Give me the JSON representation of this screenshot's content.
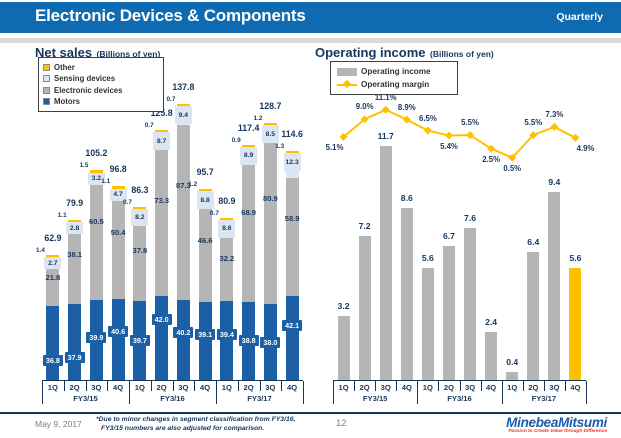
{
  "header": {
    "title": "Electronic Devices & Components",
    "tag": "Quarterly"
  },
  "left_chart": {
    "title": "Net sales",
    "unit": "(Billions of yen)"
  },
  "right_chart": {
    "title": "Operating income",
    "unit": "(Billions of yen)"
  },
  "footer": {
    "date": "May 9, 2017",
    "footnote_line1": "*Due to minor changes in segment classification from FY3/16,",
    "footnote_line2": "FY3/15 numbers are also adjusted for comparison.",
    "page": "12",
    "logo": "MinebeaMitsumi",
    "tagline": "Passion to Create Value through Difference"
  },
  "colors": {
    "header_blue": "#0e6bb2",
    "navy_text": "#17365d",
    "motors_blue": "#1b5fa6",
    "bar_gray": "#b5b5b5",
    "sensing_pale_blue": "#dce6f2",
    "accent_yellow": "#ffc000",
    "logo_blue": "#1b5eac",
    "logo_red": "#e8380d"
  },
  "chart_data": [
    {
      "type": "bar",
      "subtype": "stacked",
      "title": "Net sales (Billions of yen)",
      "categories": [
        "1Q",
        "2Q",
        "3Q",
        "4Q",
        "1Q",
        "2Q",
        "3Q",
        "4Q",
        "1Q",
        "2Q",
        "3Q",
        "4Q"
      ],
      "group_labels": [
        "FY3/15",
        "FY3/16",
        "FY3/17"
      ],
      "ylim": [
        0,
        140
      ],
      "grid": false,
      "legend_position": "top-left",
      "series": [
        {
          "name": "Motors",
          "color": "#1b5fa6",
          "values": [
            36.8,
            37.9,
            39.9,
            40.6,
            39.7,
            42.0,
            40.2,
            39.1,
            39.4,
            38.8,
            38.0,
            42.1
          ]
        },
        {
          "name": "Electronic devices",
          "color": "#b5b5b5",
          "values": [
            21.8,
            38.1,
            60.5,
            50.4,
            37.8,
            73.3,
            87.3,
            46.6,
            32.2,
            68.9,
            80.9,
            58.9
          ]
        },
        {
          "name": "Sensing devices",
          "color": "#dce6f2",
          "values": [
            2.7,
            2.8,
            3.2,
            4.7,
            8.2,
            8.7,
            9.4,
            8.8,
            8.6,
            8.9,
            8.5,
            12.3
          ]
        },
        {
          "name": "Other",
          "color": "#ffc000",
          "values": [
            1.4,
            1.1,
            1.5,
            1.1,
            0.7,
            0.7,
            0.7,
            1.2,
            0.7,
            0.9,
            1.2,
            1.3
          ]
        }
      ],
      "totals": [
        62.9,
        79.9,
        105.2,
        96.8,
        86.3,
        125.8,
        137.8,
        95.7,
        80.9,
        117.4,
        128.7,
        114.6
      ]
    },
    {
      "type": "bar",
      "subtype": "bar-line-combo",
      "title": "Operating income (Billions of yen)",
      "categories": [
        "1Q",
        "2Q",
        "3Q",
        "4Q",
        "1Q",
        "2Q",
        "3Q",
        "4Q",
        "1Q",
        "2Q",
        "3Q",
        "4Q"
      ],
      "group_labels": [
        "FY3/15",
        "FY3/16",
        "FY3/17"
      ],
      "ylim": [
        0,
        13
      ],
      "grid": false,
      "legend_position": "top-left",
      "series": [
        {
          "name": "Operating income",
          "render": "bar",
          "color": "#b5b5b5",
          "highlight_index": 11,
          "highlight_color": "#ffc000",
          "values": [
            3.2,
            7.2,
            11.7,
            8.6,
            5.6,
            6.7,
            7.6,
            2.4,
            0.4,
            6.4,
            9.4,
            5.6
          ]
        },
        {
          "name": "Operating margin",
          "render": "line",
          "color": "#ffc000",
          "unit": "%",
          "values": [
            5.1,
            9.0,
            11.1,
            8.9,
            6.5,
            5.4,
            5.5,
            2.5,
            0.5,
            5.5,
            7.3,
            4.9
          ]
        }
      ]
    }
  ]
}
